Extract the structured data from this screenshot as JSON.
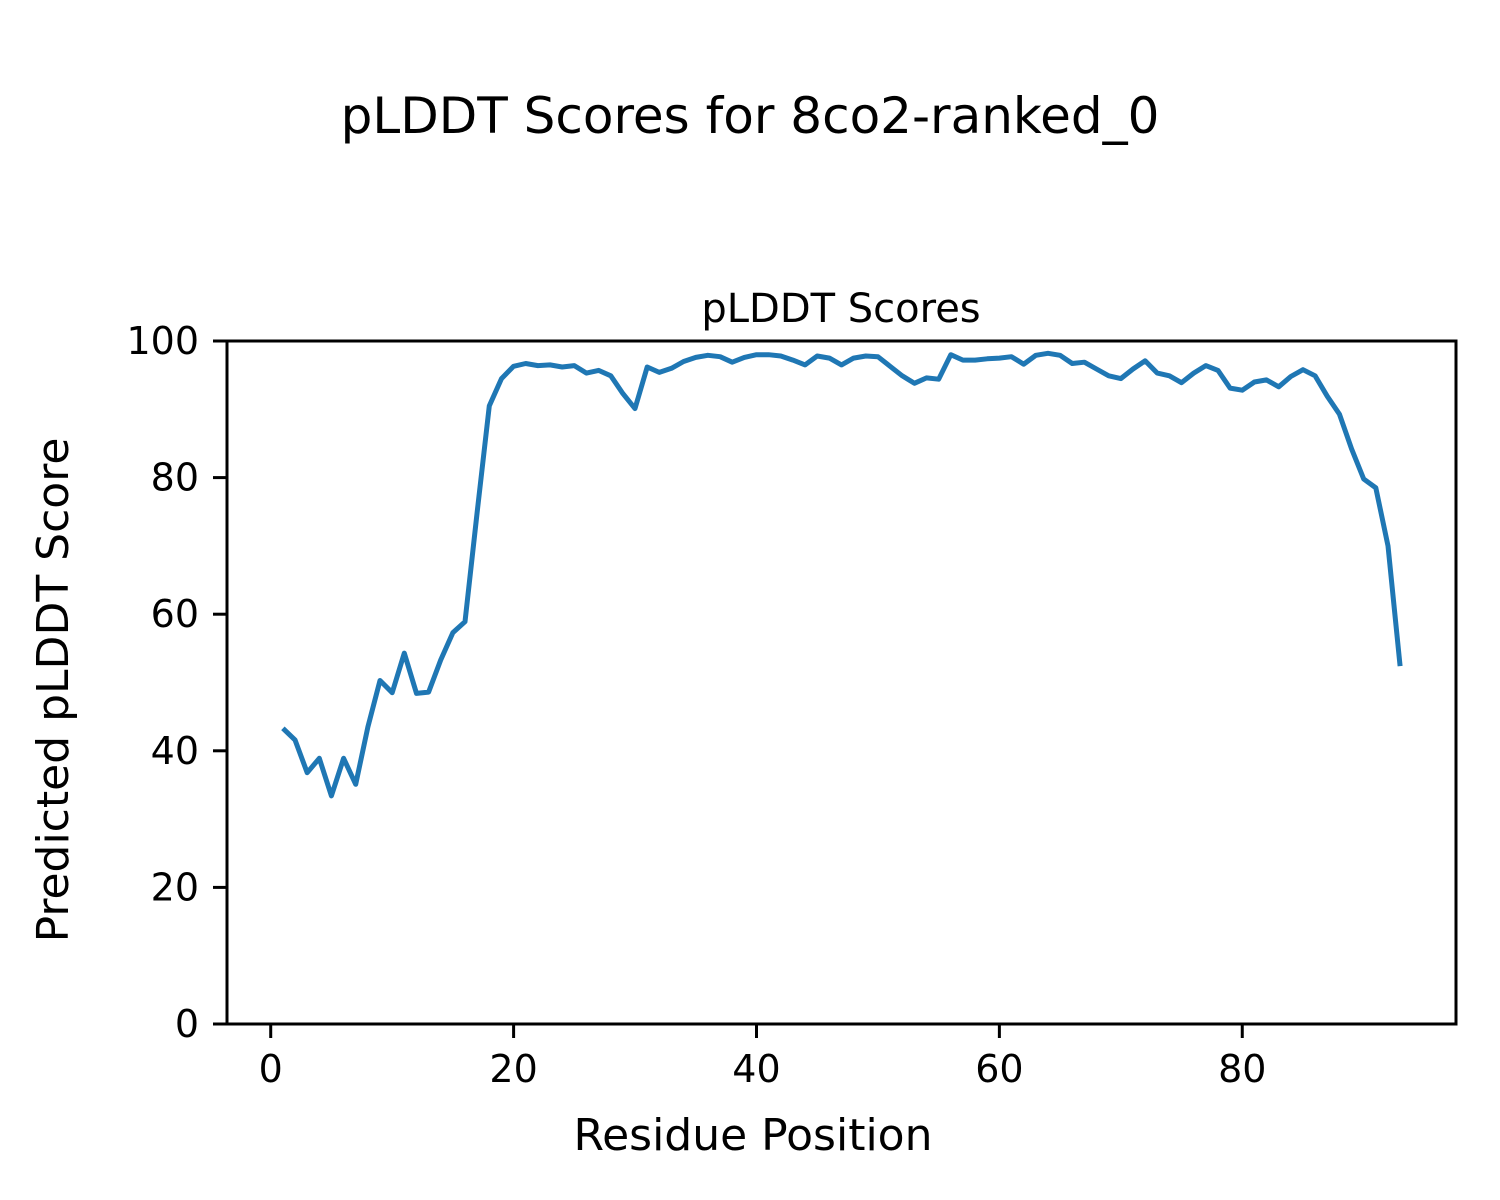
{
  "figure": {
    "suptitle": "pLDDT Scores for 8co2-ranked_0"
  },
  "chart_data": {
    "type": "line",
    "title": "pLDDT Scores",
    "xlabel": "Residue Position",
    "ylabel": "Predicted pLDDT Score",
    "series_color": "#1f77b4",
    "grid": false,
    "legend_position": "none",
    "xlim": [
      -3.6,
      97.6
    ],
    "ylim": [
      0,
      100
    ],
    "x_ticks": [
      0,
      20,
      40,
      60,
      80
    ],
    "y_ticks": [
      0,
      20,
      40,
      60,
      80,
      100
    ],
    "series": [
      {
        "name": "pLDDT",
        "x": [
          1,
          2,
          3,
          4,
          5,
          6,
          7,
          8,
          9,
          10,
          11,
          12,
          13,
          14,
          15,
          16,
          17,
          18,
          19,
          20,
          21,
          22,
          23,
          24,
          25,
          26,
          27,
          28,
          29,
          30,
          31,
          32,
          33,
          34,
          35,
          36,
          37,
          38,
          39,
          40,
          41,
          42,
          43,
          44,
          45,
          46,
          47,
          48,
          49,
          50,
          51,
          52,
          53,
          54,
          55,
          56,
          57,
          58,
          59,
          60,
          61,
          62,
          63,
          64,
          65,
          66,
          67,
          68,
          69,
          70,
          71,
          72,
          73,
          74,
          75,
          76,
          77,
          78,
          79,
          80,
          81,
          82,
          83,
          84,
          85,
          86,
          87,
          88,
          89,
          90,
          91,
          92,
          93
        ],
        "values": [
          43.3,
          41.6,
          36.8,
          38.9,
          33.4,
          38.9,
          35.1,
          43.5,
          50.3,
          48.5,
          54.3,
          48.4,
          48.6,
          53.3,
          57.3,
          58.9,
          75.0,
          90.5,
          94.5,
          96.3,
          96.7,
          96.4,
          96.5,
          96.2,
          96.4,
          95.3,
          95.7,
          94.9,
          92.3,
          90.1,
          96.2,
          95.4,
          96.0,
          97.0,
          97.6,
          97.9,
          97.7,
          96.9,
          97.6,
          98.0,
          98.0,
          97.8,
          97.2,
          96.5,
          97.8,
          97.5,
          96.5,
          97.5,
          97.8,
          97.7,
          96.3,
          94.9,
          93.8,
          94.6,
          94.4,
          98.0,
          97.2,
          97.2,
          97.4,
          97.5,
          97.7,
          96.6,
          97.9,
          98.2,
          97.9,
          96.7,
          96.9,
          95.9,
          94.9,
          94.5,
          95.9,
          97.1,
          95.3,
          94.9,
          93.9,
          95.3,
          96.4,
          95.7,
          93.1,
          92.8,
          94.0,
          94.3,
          93.3,
          94.8,
          95.8,
          94.9,
          91.9,
          89.3,
          84.2,
          79.8,
          78.5,
          70.0,
          52.4
        ]
      }
    ]
  }
}
